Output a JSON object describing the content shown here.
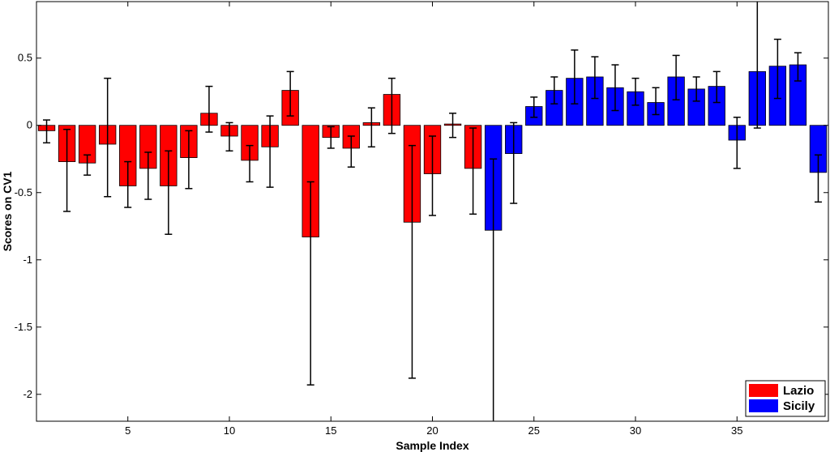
{
  "chart_data": {
    "type": "bar",
    "xlabel": "Sample Index",
    "ylabel": "Scores on CV1",
    "xlim": [
      0.5,
      39.5
    ],
    "ylim": [
      -2.2,
      0.92
    ],
    "xticks": [
      5,
      10,
      15,
      20,
      25,
      30,
      35
    ],
    "yticks": [
      -2,
      -1.5,
      -1,
      -0.5,
      0,
      0.5
    ],
    "ytick_labels": [
      "-2",
      "-1.5",
      "-1",
      "-0.5",
      "0",
      "0.5"
    ],
    "grid": false,
    "legend_position": "bottom-right",
    "series": [
      {
        "name": "Lazio",
        "color": "#ff0000",
        "x": [
          1,
          2,
          3,
          4,
          5,
          6,
          7,
          8,
          9,
          10,
          11,
          12,
          13,
          14,
          15,
          16,
          17,
          18,
          19,
          20,
          21,
          22
        ],
        "values": [
          -0.04,
          -0.27,
          -0.28,
          -0.14,
          -0.45,
          -0.32,
          -0.45,
          -0.24,
          0.09,
          -0.08,
          -0.26,
          -0.16,
          0.26,
          -0.83,
          -0.09,
          -0.17,
          0.02,
          0.23,
          -0.72,
          -0.36,
          0.01,
          -0.32
        ],
        "err_low": [
          -0.13,
          -0.64,
          -0.37,
          -0.53,
          -0.61,
          -0.55,
          -0.81,
          -0.47,
          -0.05,
          -0.19,
          -0.42,
          -0.46,
          0.07,
          -1.93,
          -0.17,
          -0.31,
          -0.16,
          -0.06,
          -1.88,
          -0.67,
          -0.09,
          -0.66
        ],
        "err_high": [
          0.04,
          -0.03,
          -0.22,
          0.35,
          -0.27,
          -0.2,
          -0.19,
          -0.04,
          0.29,
          0.02,
          -0.15,
          0.07,
          0.4,
          -0.42,
          -0.01,
          -0.08,
          0.13,
          0.35,
          -0.15,
          -0.08,
          0.09,
          -0.02
        ]
      },
      {
        "name": "Sicily",
        "color": "#0000ff",
        "x": [
          23,
          24,
          25,
          26,
          27,
          28,
          29,
          30,
          31,
          32,
          33,
          34,
          35,
          36,
          37,
          38,
          39
        ],
        "values": [
          -0.78,
          -0.21,
          0.14,
          0.26,
          0.35,
          0.36,
          0.28,
          0.25,
          0.17,
          0.36,
          0.27,
          0.29,
          -0.11,
          0.4,
          0.44,
          0.45,
          -0.35
        ],
        "err_low": [
          -2.2,
          -0.58,
          0.06,
          0.16,
          0.16,
          0.2,
          0.11,
          0.15,
          0.08,
          0.19,
          0.18,
          0.17,
          -0.32,
          -0.02,
          0.2,
          0.33,
          -0.57
        ],
        "err_high": [
          -0.25,
          0.02,
          0.21,
          0.36,
          0.56,
          0.51,
          0.45,
          0.35,
          0.28,
          0.52,
          0.36,
          0.4,
          0.06,
          0.92,
          0.64,
          0.54,
          -0.22
        ]
      }
    ]
  }
}
